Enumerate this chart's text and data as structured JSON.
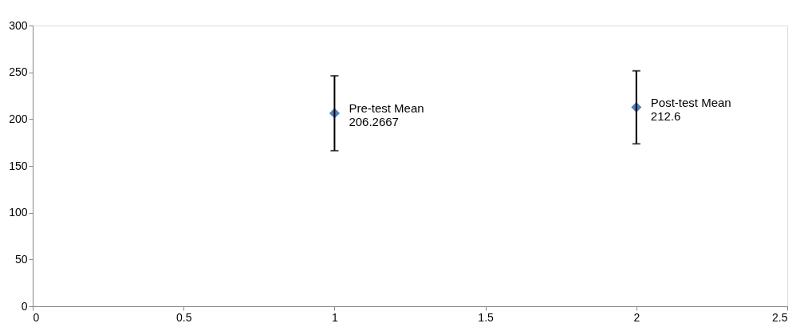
{
  "chart_data": {
    "type": "scatter",
    "x": [
      1,
      2
    ],
    "series": [
      {
        "color": "#4f81bd",
        "values": [
          206.2667,
          212.6
        ],
        "errors": [
          40,
          39
        ]
      }
    ],
    "marker": "diamond",
    "xlim": [
      0,
      2.5
    ],
    "xticks": [
      0,
      0.5,
      1,
      1.5,
      2,
      2.5
    ],
    "ylim": [
      0,
      300
    ],
    "yticks": [
      0,
      50,
      100,
      150,
      200,
      250,
      300
    ],
    "grid": false,
    "annotations": [
      {
        "text": "Pre-test Mean\n206.2667",
        "x": 1,
        "y": 206.2667
      },
      {
        "text": "Post-test Mean\n212.6",
        "x": 2,
        "y": 212.6
      }
    ]
  }
}
